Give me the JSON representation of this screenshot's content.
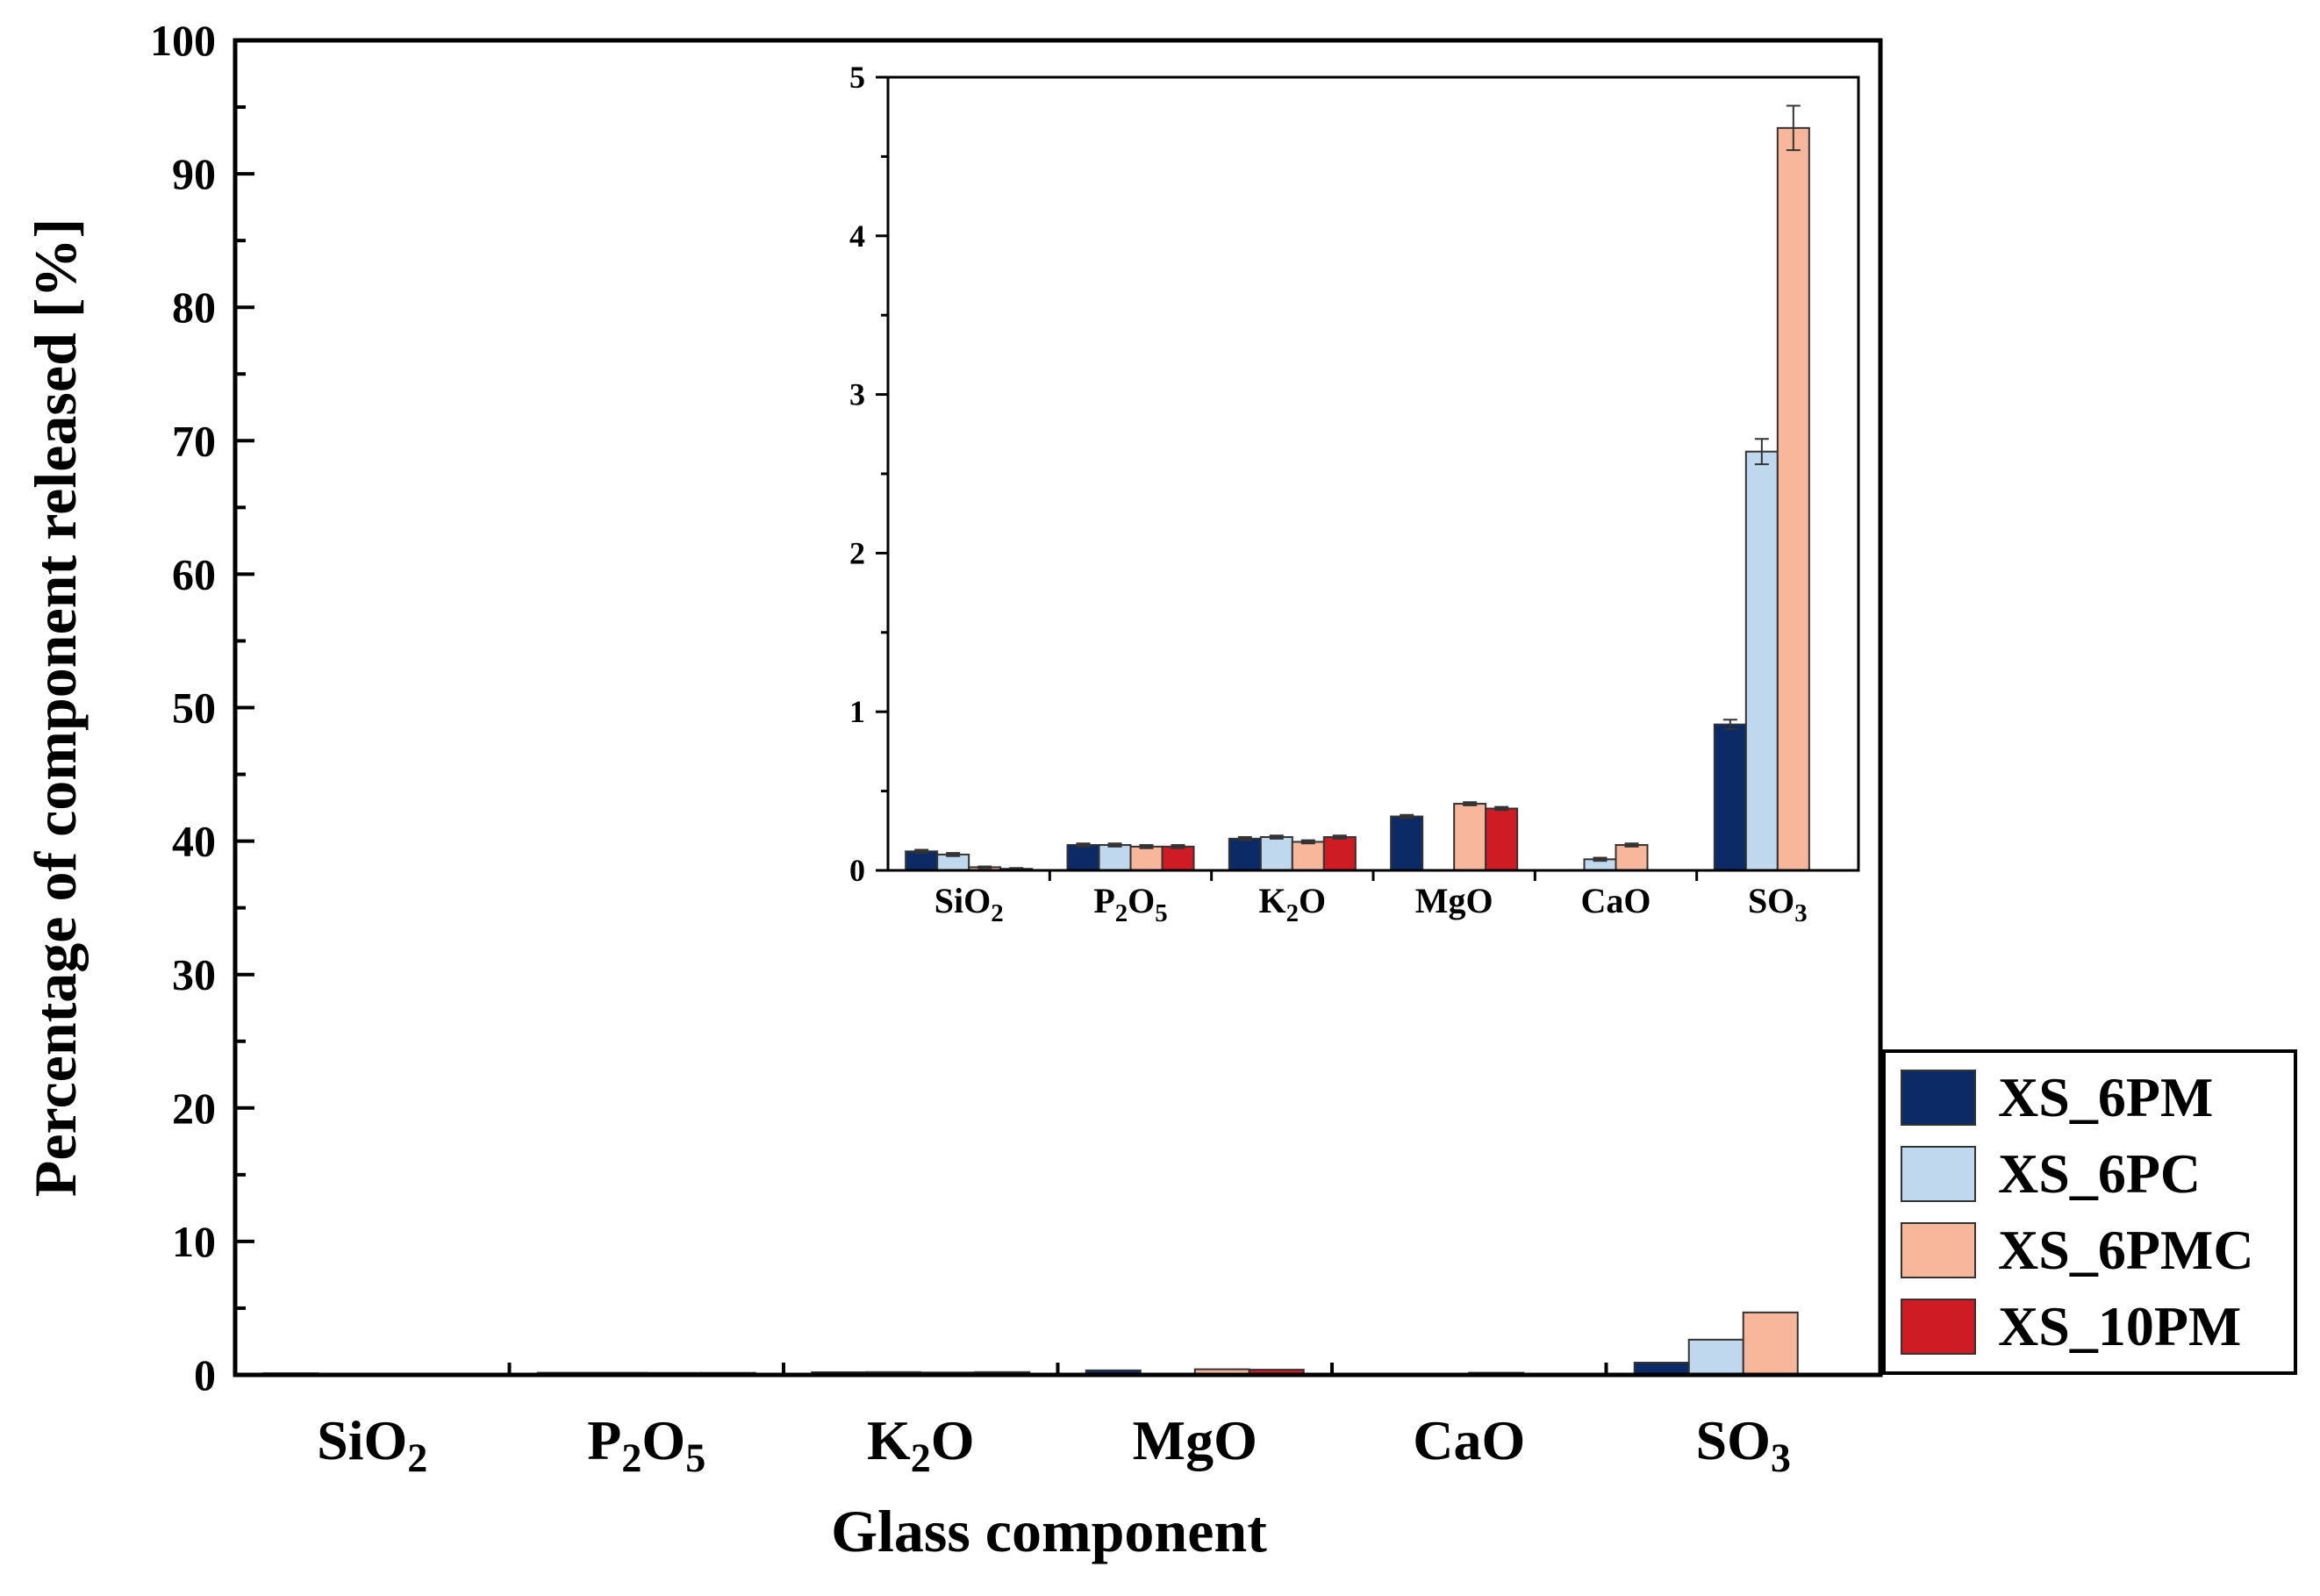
{
  "colors": {
    "XS_6PM": "#0b2a66",
    "XS_6PC": "#bfd8ee",
    "XS_6PMC": "#f8b79a",
    "XS_10PM": "#cf1b24",
    "bar_stroke": "#333333",
    "axis": "#000000"
  },
  "chart_data": [
    {
      "type": "bar",
      "id": "main",
      "ylabel": "Percentage of component released [%]",
      "xlabel": "Glass component",
      "ylim": [
        0,
        100
      ],
      "yticks": [
        0,
        10,
        20,
        30,
        40,
        50,
        60,
        70,
        80,
        90,
        100
      ],
      "categories": [
        {
          "base": "SiO",
          "sub": "2",
          "tail": "",
          "tail_sub": ""
        },
        {
          "base": "P",
          "sub": "2",
          "tail": "O",
          "tail_sub": "5"
        },
        {
          "base": "K",
          "sub": "2",
          "tail": "O",
          "tail_sub": ""
        },
        {
          "base": "MgO",
          "sub": "",
          "tail": "",
          "tail_sub": ""
        },
        {
          "base": "CaO",
          "sub": "",
          "tail": "",
          "tail_sub": ""
        },
        {
          "base": "SO",
          "sub": "3",
          "tail": "",
          "tail_sub": ""
        }
      ],
      "series": [
        {
          "name": "XS_6PM",
          "values": [
            0.12,
            0.16,
            0.2,
            0.34,
            0,
            0.92
          ]
        },
        {
          "name": "XS_6PC",
          "values": [
            0.1,
            0.16,
            0.21,
            0,
            0.07,
            2.64
          ]
        },
        {
          "name": "XS_6PMC",
          "values": [
            0.02,
            0.15,
            0.18,
            0.42,
            0.16,
            4.68
          ]
        },
        {
          "name": "XS_10PM",
          "values": [
            0.01,
            0.15,
            0.21,
            0.39,
            0,
            0
          ]
        }
      ],
      "legend": {
        "position": "right",
        "entries": [
          "XS_6PM",
          "XS_6PC",
          "XS_6PMC",
          "XS_10PM"
        ]
      }
    },
    {
      "type": "bar",
      "id": "inset",
      "ylim": [
        0,
        5
      ],
      "yticks": [
        0,
        1,
        2,
        3,
        4,
        5
      ],
      "categories": [
        {
          "base": "SiO",
          "sub": "2",
          "tail": "",
          "tail_sub": ""
        },
        {
          "base": "P",
          "sub": "2",
          "tail": "O",
          "tail_sub": "5"
        },
        {
          "base": "K",
          "sub": "2",
          "tail": "O",
          "tail_sub": ""
        },
        {
          "base": "MgO",
          "sub": "",
          "tail": "",
          "tail_sub": ""
        },
        {
          "base": "CaO",
          "sub": "",
          "tail": "",
          "tail_sub": ""
        },
        {
          "base": "SO",
          "sub": "3",
          "tail": "",
          "tail_sub": ""
        }
      ],
      "series": [
        {
          "name": "XS_6PM",
          "values": [
            0.12,
            0.16,
            0.2,
            0.34,
            0,
            0.92
          ],
          "errors": [
            0.01,
            0.01,
            0.01,
            0.01,
            0,
            0.03
          ]
        },
        {
          "name": "XS_6PC",
          "values": [
            0.1,
            0.16,
            0.21,
            0,
            0.07,
            2.64
          ],
          "errors": [
            0.01,
            0.01,
            0.01,
            0,
            0.01,
            0.08
          ]
        },
        {
          "name": "XS_6PMC",
          "values": [
            0.02,
            0.15,
            0.18,
            0.42,
            0.16,
            4.68
          ],
          "errors": [
            0.005,
            0.01,
            0.01,
            0.01,
            0.01,
            0.14
          ]
        },
        {
          "name": "XS_10PM",
          "values": [
            0.01,
            0.15,
            0.21,
            0.39,
            0,
            0
          ],
          "errors": [
            0.005,
            0.01,
            0.01,
            0.01,
            0,
            0
          ]
        }
      ]
    }
  ]
}
